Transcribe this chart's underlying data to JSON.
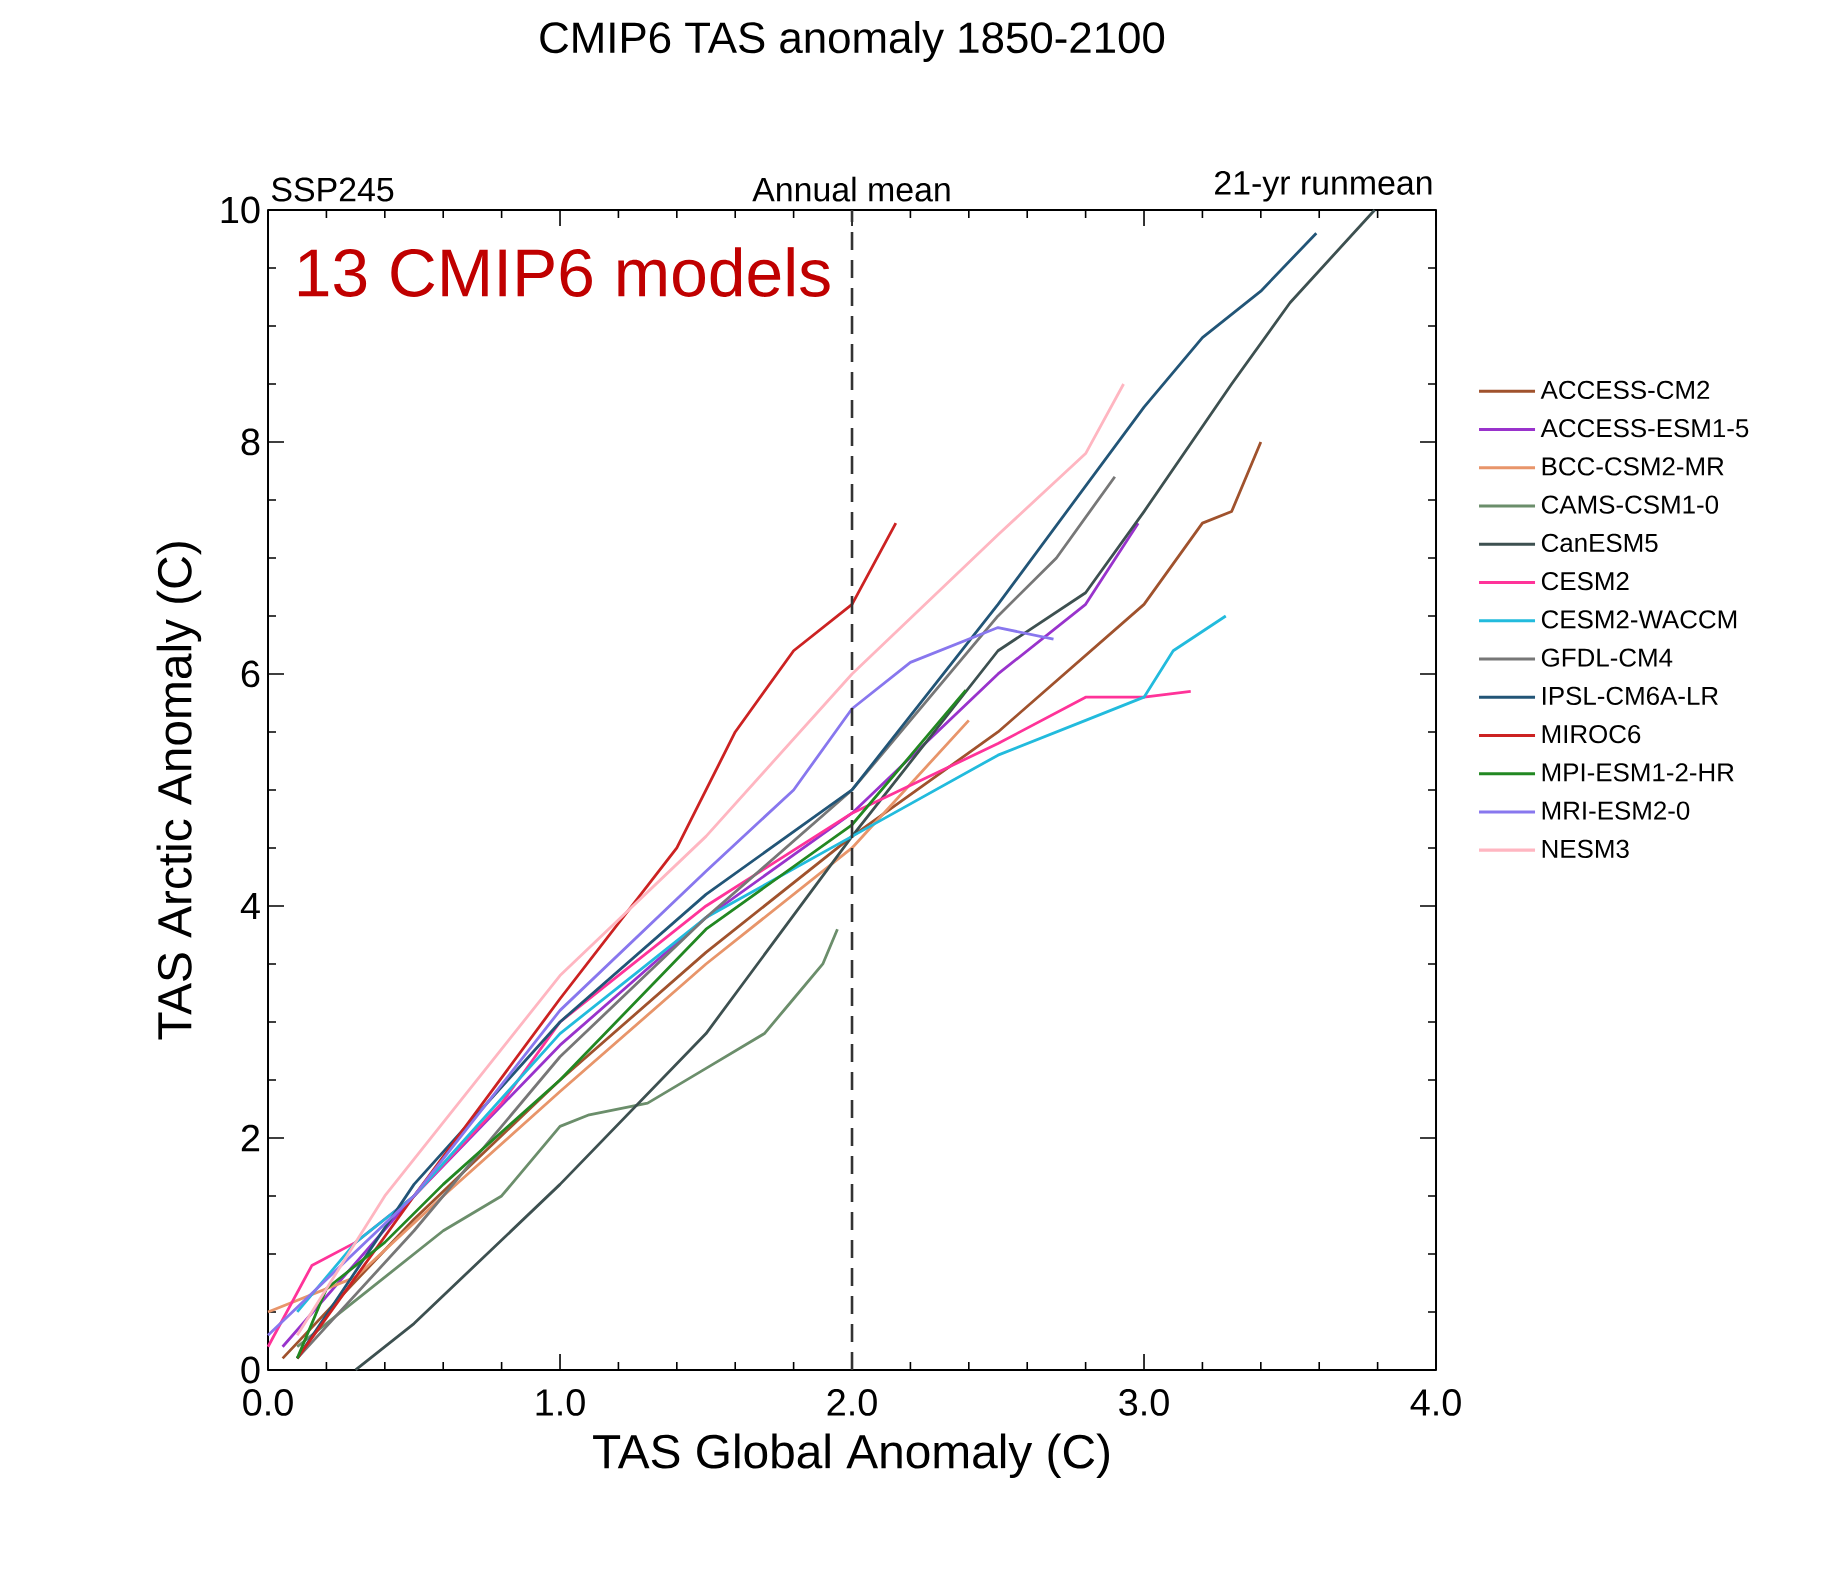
{
  "chart_data": {
    "type": "line",
    "title": "CMIP6 TAS anomaly 1850-2100",
    "xlabel": "TAS Global Anomaly (C)",
    "ylabel": "TAS Arctic Anomaly (C)",
    "annotations": [
      "SSP245",
      "Annual mean",
      "21-yr runmean",
      "13 CMIP6 models"
    ],
    "xlim": [
      0,
      4
    ],
    "ylim": [
      0,
      10
    ],
    "xticks": [
      {
        "value": 0,
        "label": "0.0"
      },
      {
        "value": 1,
        "label": "1.0"
      },
      {
        "value": 2,
        "label": "2.0"
      },
      {
        "value": 3,
        "label": "3.0"
      },
      {
        "value": 4,
        "label": "4.0"
      }
    ],
    "yticks": [
      0,
      2,
      4,
      6,
      8,
      10
    ],
    "ref_lines": [
      {
        "axis": "x",
        "value": 2.0,
        "color": "#333333",
        "line_style": "dashed"
      }
    ],
    "legend": "right",
    "line_style": "solid",
    "marker": "none",
    "grid": false,
    "series": [
      {
        "name": "ACCESS-CM2",
        "color": "#a0522d",
        "x": [
          0.05,
          0.5,
          1.0,
          1.5,
          2.0,
          2.5,
          3.0,
          3.2,
          3.3,
          3.4
        ],
        "values": [
          0.1,
          1.3,
          2.5,
          3.6,
          4.6,
          5.5,
          6.6,
          7.3,
          7.4,
          8.0
        ]
      },
      {
        "name": "ACCESS-ESM1-5",
        "color": "#9933cc",
        "x": [
          0.05,
          0.5,
          1.0,
          1.5,
          2.0,
          2.5,
          2.8,
          2.98
        ],
        "values": [
          0.2,
          1.5,
          2.8,
          3.9,
          4.8,
          6.0,
          6.6,
          7.3
        ]
      },
      {
        "name": "BCC-CSM2-MR",
        "color": "#e8956a",
        "x": [
          0,
          0.3,
          0.6,
          1.0,
          1.5,
          2.0,
          2.4
        ],
        "values": [
          0.5,
          0.8,
          1.5,
          2.4,
          3.5,
          4.5,
          5.6
        ]
      },
      {
        "name": "CAMS-CSM1-0",
        "color": "#6b8e6b",
        "x": [
          0.1,
          0.3,
          0.6,
          0.8,
          1.0,
          1.1,
          1.3,
          1.5,
          1.7,
          1.8,
          1.9,
          1.95
        ],
        "values": [
          0.2,
          0.6,
          1.2,
          1.5,
          2.1,
          2.2,
          2.3,
          2.6,
          2.9,
          3.2,
          3.5,
          3.8
        ]
      },
      {
        "name": "CanESM5",
        "color": "#3d5050",
        "x": [
          0.3,
          0.5,
          1.0,
          1.5,
          2.0,
          2.5,
          2.8,
          3.0,
          3.3,
          3.5,
          3.79
        ],
        "values": [
          0,
          0.4,
          1.6,
          2.9,
          4.6,
          6.2,
          6.7,
          7.4,
          8.5,
          9.2,
          10.0
        ]
      },
      {
        "name": "CESM2",
        "color": "#ff3399",
        "x": [
          0,
          0.15,
          0.3,
          0.5,
          0.8,
          1.0,
          1.5,
          2.0,
          2.5,
          2.8,
          3.0,
          3.16
        ],
        "values": [
          0.2,
          0.9,
          1.1,
          1.5,
          2.3,
          3.0,
          4.0,
          4.8,
          5.4,
          5.8,
          5.8,
          5.85
        ]
      },
      {
        "name": "CESM2-WACCM",
        "color": "#22bbdd",
        "x": [
          0.1,
          0.3,
          0.5,
          1.0,
          1.5,
          2.0,
          2.5,
          2.8,
          3.0,
          3.1,
          3.28
        ],
        "values": [
          0.5,
          1.1,
          1.5,
          2.9,
          3.9,
          4.6,
          5.3,
          5.6,
          5.8,
          6.2,
          6.5
        ]
      },
      {
        "name": "GFDL-CM4",
        "color": "#777777",
        "x": [
          0.1,
          0.5,
          1.0,
          1.5,
          2.0,
          2.5,
          2.7,
          2.9
        ],
        "values": [
          0.1,
          1.2,
          2.7,
          3.9,
          5.0,
          6.5,
          7.0,
          7.7
        ]
      },
      {
        "name": "IPSL-CM6A-LR",
        "color": "#225577",
        "x": [
          0.1,
          0.5,
          1.0,
          1.5,
          2.0,
          2.5,
          3.0,
          3.2,
          3.4,
          3.59
        ],
        "values": [
          0.1,
          1.6,
          3.0,
          4.1,
          5.0,
          6.6,
          8.3,
          8.9,
          9.3,
          9.8
        ]
      },
      {
        "name": "MIROC6",
        "color": "#cc2222",
        "x": [
          0.1,
          0.5,
          1.0,
          1.4,
          1.6,
          1.8,
          2.0,
          2.15
        ],
        "values": [
          0.1,
          1.5,
          3.2,
          4.5,
          5.5,
          6.2,
          6.6,
          7.3
        ]
      },
      {
        "name": "MPI-ESM1-2-HR",
        "color": "#228822",
        "x": [
          0.1,
          0.2,
          0.4,
          0.6,
          1.0,
          1.5,
          2.0,
          2.39
        ],
        "values": [
          0.1,
          0.7,
          1.1,
          1.6,
          2.5,
          3.8,
          4.7,
          5.86
        ]
      },
      {
        "name": "MRI-ESM2-0",
        "color": "#8877ee",
        "x": [
          0,
          0.5,
          1.0,
          1.5,
          1.8,
          2.0,
          2.2,
          2.5,
          2.69
        ],
        "values": [
          0.3,
          1.5,
          3.1,
          4.3,
          5.0,
          5.7,
          6.1,
          6.4,
          6.3
        ]
      },
      {
        "name": "NESM3",
        "color": "#ffb6c1",
        "x": [
          0.1,
          0.4,
          1.0,
          1.5,
          2.0,
          2.5,
          2.8,
          2.93
        ],
        "values": [
          0.3,
          1.5,
          3.4,
          4.6,
          6.0,
          7.2,
          7.9,
          8.5
        ]
      }
    ]
  }
}
